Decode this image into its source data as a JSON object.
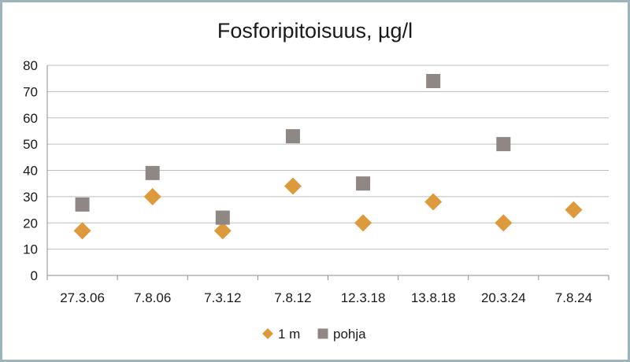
{
  "chart_data": {
    "type": "scatter",
    "title": "Fosforipitoisuus, µg/l",
    "xlabel": "",
    "ylabel": "",
    "categories": [
      "27.3.06",
      "7.8.06",
      "7.3.12",
      "7.8.12",
      "12.3.18",
      "13.8.18",
      "20.3.24",
      "7.8.24"
    ],
    "ylim": [
      0,
      80
    ],
    "yticks": [
      0,
      10,
      20,
      30,
      40,
      50,
      60,
      70,
      80
    ],
    "grid": true,
    "legend": "bottom",
    "series": [
      {
        "name": "1 m",
        "marker": "diamond",
        "color": "#dd9a3c",
        "values": [
          17,
          30,
          17,
          34,
          20,
          28,
          20,
          25
        ]
      },
      {
        "name": "pohja",
        "marker": "square",
        "color": "#8f8783",
        "values": [
          27,
          39,
          22,
          53,
          35,
          74,
          50,
          null
        ]
      }
    ]
  }
}
